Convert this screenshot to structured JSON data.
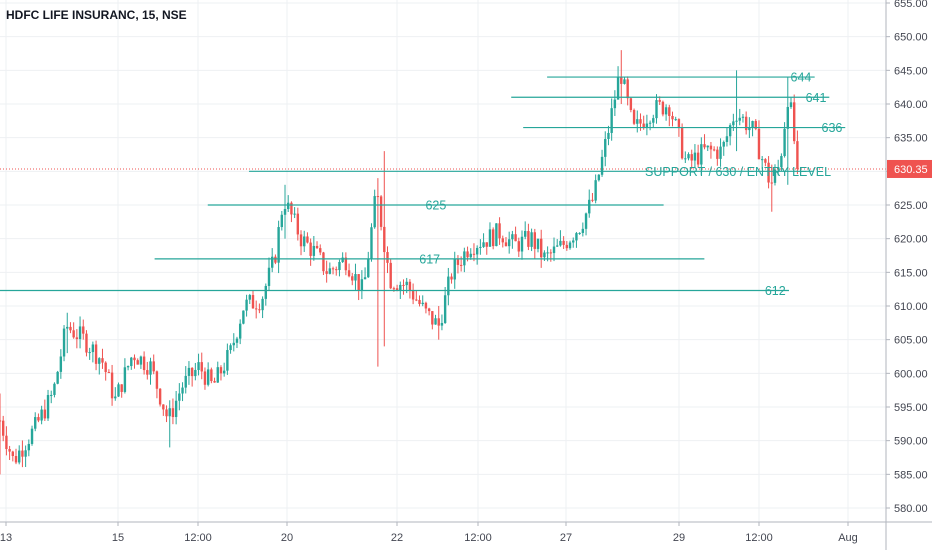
{
  "title": "HDFC LIFE INSURANC, 15, NSE",
  "colors": {
    "up": "#26a69a",
    "down": "#ef5350",
    "level_line": "#26a69a",
    "price_line": "#ef5350",
    "grid": "#eef0f3",
    "axis_text": "#434651",
    "price_tag_bg": "#ef5350",
    "price_tag_text": "#ffffff"
  },
  "chart_data": {
    "type": "candlestick",
    "title": "HDFC LIFE INSURANC, 15, NSE",
    "ylim": [
      577,
      656
    ],
    "y_ticks": [
      580,
      585,
      590,
      595,
      600,
      605,
      610,
      615,
      620,
      625,
      630,
      635,
      640,
      645,
      650,
      655
    ],
    "y_tick_labels": [
      "580.00",
      "585.00",
      "590.00",
      "595.00",
      "600.00",
      "605.00",
      "610.00",
      "615.00",
      "620.00",
      "625.00",
      "630.00",
      "635.00",
      "640.00",
      "645.00",
      "650.00",
      "655.00"
    ],
    "x_tick_labels": [
      "13",
      "15",
      "12:00",
      "20",
      "22",
      "12:00",
      "27",
      "29",
      "12:00",
      "Aug"
    ],
    "current_price": 630.35,
    "current_price_label": "630.35",
    "grid": true,
    "price_path": [
      {
        "t": 0.0,
        "v": 593
      },
      {
        "t": 0.015,
        "v": 587
      },
      {
        "t": 0.04,
        "v": 592
      },
      {
        "t": 0.06,
        "v": 597
      },
      {
        "t": 0.075,
        "v": 607
      },
      {
        "t": 0.095,
        "v": 605
      },
      {
        "t": 0.115,
        "v": 602
      },
      {
        "t": 0.13,
        "v": 596
      },
      {
        "t": 0.15,
        "v": 603
      },
      {
        "t": 0.17,
        "v": 601
      },
      {
        "t": 0.19,
        "v": 593
      },
      {
        "t": 0.205,
        "v": 598
      },
      {
        "t": 0.225,
        "v": 601
      },
      {
        "t": 0.24,
        "v": 598
      },
      {
        "t": 0.26,
        "v": 603
      },
      {
        "t": 0.275,
        "v": 610
      },
      {
        "t": 0.295,
        "v": 611
      },
      {
        "t": 0.31,
        "v": 617
      },
      {
        "t": 0.32,
        "v": 626
      },
      {
        "t": 0.34,
        "v": 620
      },
      {
        "t": 0.355,
        "v": 618
      },
      {
        "t": 0.37,
        "v": 615
      },
      {
        "t": 0.39,
        "v": 617
      },
      {
        "t": 0.41,
        "v": 612
      },
      {
        "t": 0.425,
        "v": 627
      },
      {
        "t": 0.44,
        "v": 614
      },
      {
        "t": 0.46,
        "v": 613
      },
      {
        "t": 0.48,
        "v": 609
      },
      {
        "t": 0.495,
        "v": 607
      },
      {
        "t": 0.51,
        "v": 615
      },
      {
        "t": 0.53,
        "v": 619
      },
      {
        "t": 0.55,
        "v": 620
      },
      {
        "t": 0.565,
        "v": 621
      },
      {
        "t": 0.58,
        "v": 619
      },
      {
        "t": 0.6,
        "v": 620
      },
      {
        "t": 0.615,
        "v": 617
      },
      {
        "t": 0.635,
        "v": 619
      },
      {
        "t": 0.655,
        "v": 622
      },
      {
        "t": 0.67,
        "v": 626
      },
      {
        "t": 0.685,
        "v": 635
      },
      {
        "t": 0.7,
        "v": 645
      },
      {
        "t": 0.715,
        "v": 636
      },
      {
        "t": 0.735,
        "v": 639
      },
      {
        "t": 0.755,
        "v": 640
      },
      {
        "t": 0.775,
        "v": 631
      },
      {
        "t": 0.795,
        "v": 633
      },
      {
        "t": 0.815,
        "v": 633
      },
      {
        "t": 0.83,
        "v": 639
      },
      {
        "t": 0.85,
        "v": 636
      },
      {
        "t": 0.87,
        "v": 628
      },
      {
        "t": 0.88,
        "v": 631
      },
      {
        "t": 0.89,
        "v": 642
      },
      {
        "t": 0.9,
        "v": 630.35
      }
    ],
    "spikes": [
      {
        "t": 0.0,
        "high": 597,
        "low": 585
      },
      {
        "t": 0.075,
        "high": 609,
        "low": 603
      },
      {
        "t": 0.19,
        "high": 596,
        "low": 589
      },
      {
        "t": 0.32,
        "high": 628,
        "low": 620
      },
      {
        "t": 0.425,
        "high": 629,
        "low": 601
      },
      {
        "t": 0.435,
        "high": 633,
        "low": 604
      },
      {
        "t": 0.495,
        "high": 610,
        "low": 605
      },
      {
        "t": 0.7,
        "high": 648,
        "low": 640
      },
      {
        "t": 0.83,
        "high": 645,
        "low": 633
      },
      {
        "t": 0.87,
        "high": 631,
        "low": 624
      },
      {
        "t": 0.89,
        "high": 644,
        "low": 628
      }
    ],
    "levels": [
      {
        "value": 644,
        "label": "644",
        "x_start": 0.6175,
        "x_end": 0.9195,
        "label_x": 0.904
      },
      {
        "value": 641,
        "label": "641",
        "x_start": 0.577,
        "x_end": 0.936,
        "label_x": 0.921
      },
      {
        "value": 636.5,
        "label": "636",
        "x_start": 0.5905,
        "x_end": 0.954,
        "label_x": 0.939
      },
      {
        "value": 630,
        "label": "SUPPORT / 630 / ENTRY LEVEL",
        "x_start": 0.281,
        "x_end": 0.9185,
        "label_x": 0.833
      },
      {
        "value": 625,
        "label": "625",
        "x_start": 0.2345,
        "x_end": 0.749,
        "label_x": 0.492
      },
      {
        "value": 617,
        "label": "617",
        "x_start": 0.1745,
        "x_end": 0.795,
        "label_x": 0.485
      },
      {
        "value": 612.3,
        "label": "612",
        "x_start": 0.0,
        "x_end": 0.8905,
        "label_x": 0.875
      }
    ]
  }
}
